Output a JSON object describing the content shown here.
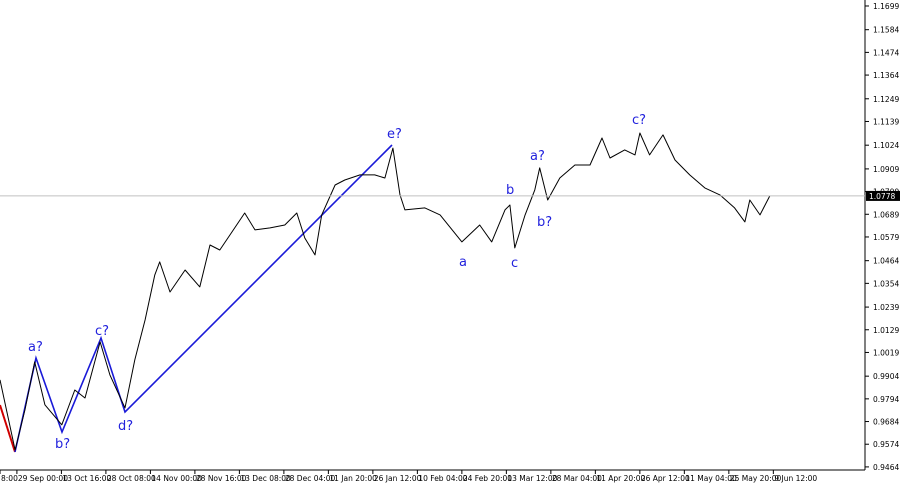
{
  "chart_data": {
    "type": "line",
    "color": "#000000",
    "x": [
      -0.38,
      -0.04,
      0.18,
      0.4,
      0.63,
      1.01,
      1.3,
      1.53,
      1.87,
      2.09,
      2.43,
      2.65,
      2.88,
      3.1,
      3.21,
      3.44,
      3.78,
      4.11,
      4.34,
      4.56,
      4.79,
      5.12,
      5.35,
      5.69,
      6.02,
      6.29,
      6.47,
      6.7,
      6.85,
      7.15,
      7.37,
      7.71,
      8.04,
      8.27,
      8.45,
      8.61,
      8.72,
      9.17,
      9.51,
      10.0,
      10.4,
      10.67,
      10.97,
      11.08,
      11.19,
      11.42,
      11.64,
      11.75,
      11.93,
      12.2,
      12.54,
      12.88,
      13.15,
      13.33,
      13.66,
      13.89,
      14.0,
      14.22,
      14.52,
      14.79,
      15.12,
      15.46,
      15.8,
      16.13,
      16.36,
      16.47,
      16.7,
      16.92
    ],
    "values": [
      0.9886,
      0.9546,
      0.974,
      0.9973,
      0.9765,
      0.9668,
      0.9837,
      0.9798,
      1.007,
      0.991,
      0.975,
      0.9983,
      1.0177,
      1.0395,
      1.0458,
      1.0312,
      1.0419,
      1.0337,
      1.054,
      1.0516,
      1.0589,
      1.0695,
      1.0613,
      1.0623,
      1.0637,
      1.0695,
      1.0574,
      1.0492,
      1.0686,
      1.0831,
      1.0855,
      1.088,
      1.088,
      1.0865,
      1.101,
      1.0783,
      1.071,
      1.072,
      1.0686,
      1.0555,
      1.0637,
      1.0555,
      1.071,
      1.0734,
      1.0526,
      1.0686,
      1.0807,
      1.0914,
      1.0758,
      1.0865,
      1.0928,
      1.0928,
      1.1059,
      1.0962,
      1.1001,
      1.0977,
      1.1083,
      1.0977,
      1.1074,
      1.0952,
      1.088,
      1.0817,
      1.0783,
      1.072,
      1.0652,
      1.0758,
      1.0686,
      1.0778
    ],
    "xlim": [
      -0.38,
      19.06
    ],
    "xticks": [
      {
        "value": -0.38,
        "label": "8:00"
      },
      {
        "value": 0,
        "label": "29 Sep 00:00"
      },
      {
        "value": 1,
        "label": "13 Oct 16:00"
      },
      {
        "value": 2,
        "label": "28 Oct 08:00"
      },
      {
        "value": 3,
        "label": "14 Nov 00:00"
      },
      {
        "value": 4,
        "label": "28 Nov 16:00"
      },
      {
        "value": 5,
        "label": "13 Dec 08:00"
      },
      {
        "value": 6,
        "label": "28 Dec 04:00"
      },
      {
        "value": 7,
        "label": "11 Jan 20:00"
      },
      {
        "value": 8,
        "label": "26 Jan 12:00"
      },
      {
        "value": 9,
        "label": "10 Feb 04:00"
      },
      {
        "value": 10,
        "label": "24 Feb 20:00"
      },
      {
        "value": 11,
        "label": "13 Mar 12:00"
      },
      {
        "value": 12,
        "label": "28 Mar 04:00"
      },
      {
        "value": 13,
        "label": "11 Apr 20:00"
      },
      {
        "value": 14,
        "label": "26 Apr 12:00"
      },
      {
        "value": 15,
        "label": "11 May 04:00"
      },
      {
        "value": 16,
        "label": "25 May 20:00"
      },
      {
        "value": 17,
        "label": "9 Jun 12:00"
      }
    ],
    "ylim": [
      0.9449,
      1.1728
    ],
    "yticks": [
      1.1699,
      1.1584,
      1.1474,
      1.1364,
      1.1249,
      1.1139,
      1.1024,
      1.0909,
      1.0799,
      1.0689,
      1.0579,
      1.0464,
      1.0354,
      1.0239,
      1.0129,
      1.0019,
      0.9904,
      0.9794,
      0.9684,
      0.9574,
      0.9464
    ],
    "current_price": 1.0778,
    "annotations": [
      "a?",
      "b?",
      "c?",
      "d?",
      "e?",
      "a",
      "c",
      "b",
      "a?",
      "b?",
      "c?"
    ]
  }
}
